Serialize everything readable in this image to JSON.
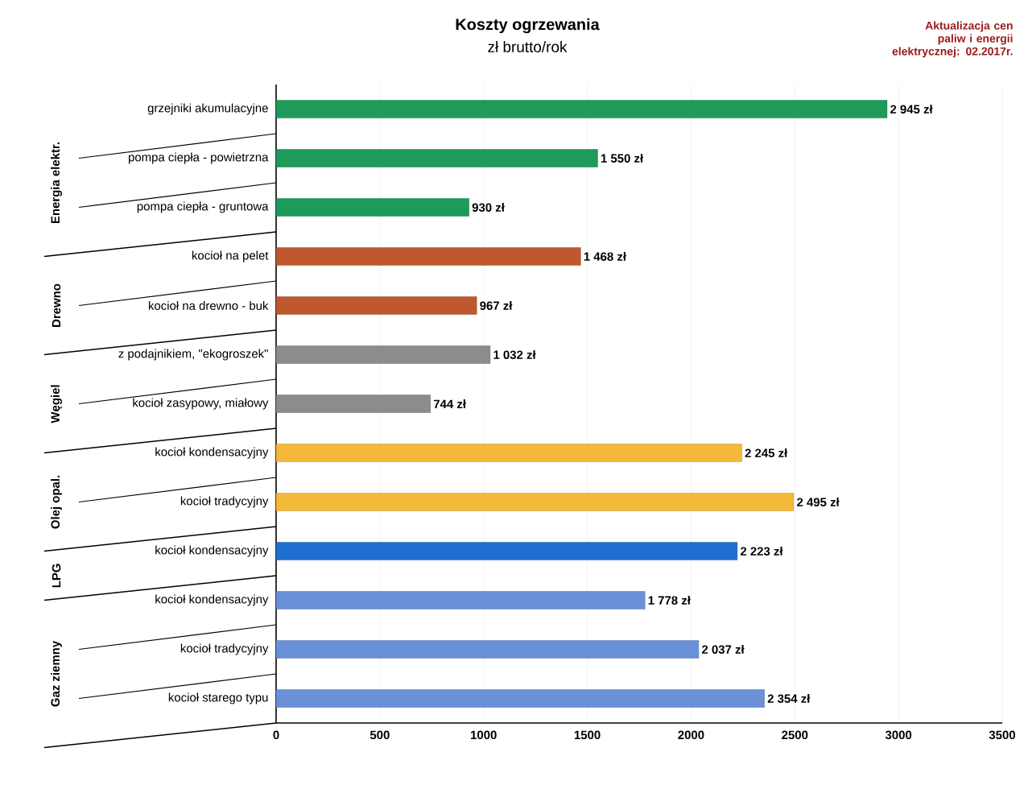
{
  "chart_data": {
    "type": "bar",
    "orientation": "horizontal",
    "title": "Koszty ogrzewania",
    "subtitle": "zł brutto/rok",
    "categories": [
      "grzejniki akumulacyjne",
      "pompa ciepła - powietrzna",
      "pompa ciepła - gruntowa",
      "kocioł na pelet",
      "kocioł na drewno - buk",
      "z podajnikiem, \"ekogroszek\"",
      "kocioł zasypowy, miałowy",
      "kocioł kondensacyjny",
      "kocioł tradycyjny",
      "kocioł kondensacyjny",
      "kocioł kondensacyjny",
      "kocioł tradycyjny",
      "kocioł starego typu"
    ],
    "values": [
      2945,
      1550,
      930,
      1468,
      967,
      1032,
      744,
      2245,
      2495,
      2223,
      1778,
      2037,
      2354
    ],
    "value_labels": [
      "2 945 zł",
      "1 550 zł",
      "930 zł",
      "1 468 zł",
      "967 zł",
      "1 032 zł",
      "744 zł",
      "2 245 zł",
      "2 495 zł",
      "2 223 zł",
      "1 778 zł",
      "2 037 zł",
      "2 354 zł"
    ],
    "colors": [
      "#1e9a5a",
      "#1e9a5a",
      "#1e9a5a",
      "#c0582f",
      "#c0582f",
      "#8c8c8c",
      "#8c8c8c",
      "#f5b93a",
      "#f5b93a",
      "#1f6fd0",
      "#6a90d8",
      "#6a90d8",
      "#6a90d8"
    ],
    "xlim": [
      0,
      3500
    ],
    "xticks": [
      0,
      500,
      1000,
      1500,
      2000,
      2500,
      3000,
      3500
    ],
    "grid": "x",
    "annotations": [
      "Aktualizacja cen paliw i energii elektrycznej: 02.2017r.",
      "Energia elektr.",
      "Drewno",
      "Węgiel",
      "Olej opal.",
      "LPG",
      "Gaz ziemny"
    ]
  }
}
